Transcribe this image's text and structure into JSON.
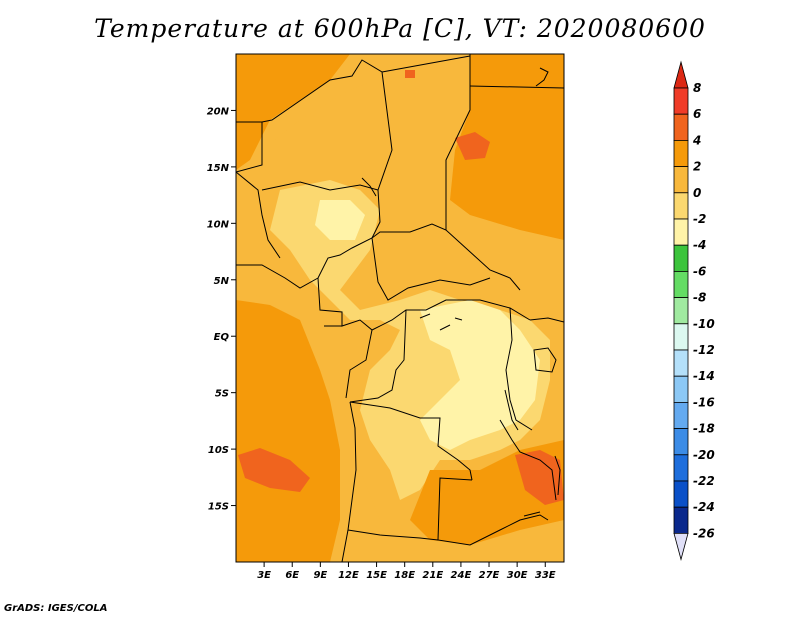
{
  "title": "Temperature at 600hPa [C], VT: 2020080600",
  "credit": "GrADS: IGES/COLA",
  "map": {
    "lon_labels": [
      "3E",
      "6E",
      "9E",
      "12E",
      "15E",
      "18E",
      "21E",
      "24E",
      "27E",
      "30E",
      "33E"
    ],
    "lat_labels": [
      "20N",
      "15N",
      "10N",
      "5N",
      "EQ",
      "5S",
      "10S",
      "15S"
    ],
    "lon_range_deg": [
      0,
      35
    ],
    "lat_range_deg": [
      -20,
      25
    ]
  },
  "colorbar": {
    "labels": [
      "8",
      "6",
      "4",
      "2",
      "0",
      "-2",
      "-4",
      "-6",
      "-8",
      "-10",
      "-12",
      "-14",
      "-16",
      "-18",
      "-20",
      "-22",
      "-24",
      "-26"
    ],
    "colors": [
      "#f03c28",
      "#f0641e",
      "#f59a0a",
      "#f8b83c",
      "#fbd870",
      "#fff3a8",
      "#3cc43c",
      "#64dc64",
      "#a0eaa0",
      "#dcf8f0",
      "#b4e0fa",
      "#8cc8f5",
      "#64aaf0",
      "#3c8ce6",
      "#1e6edc",
      "#0a50c8",
      "#0a288c",
      "#080860"
    ],
    "top_arrow_color": "#dc2814",
    "bottom_arrow_color": "#e0e0f8"
  },
  "field_colors": {
    "band_4_6": "#f59a0a",
    "band_2_4": "#f8b83c",
    "band_0_2": "#fbd870",
    "band_m2_0": "#fff3a8",
    "band_6_8": "#f0641e"
  }
}
